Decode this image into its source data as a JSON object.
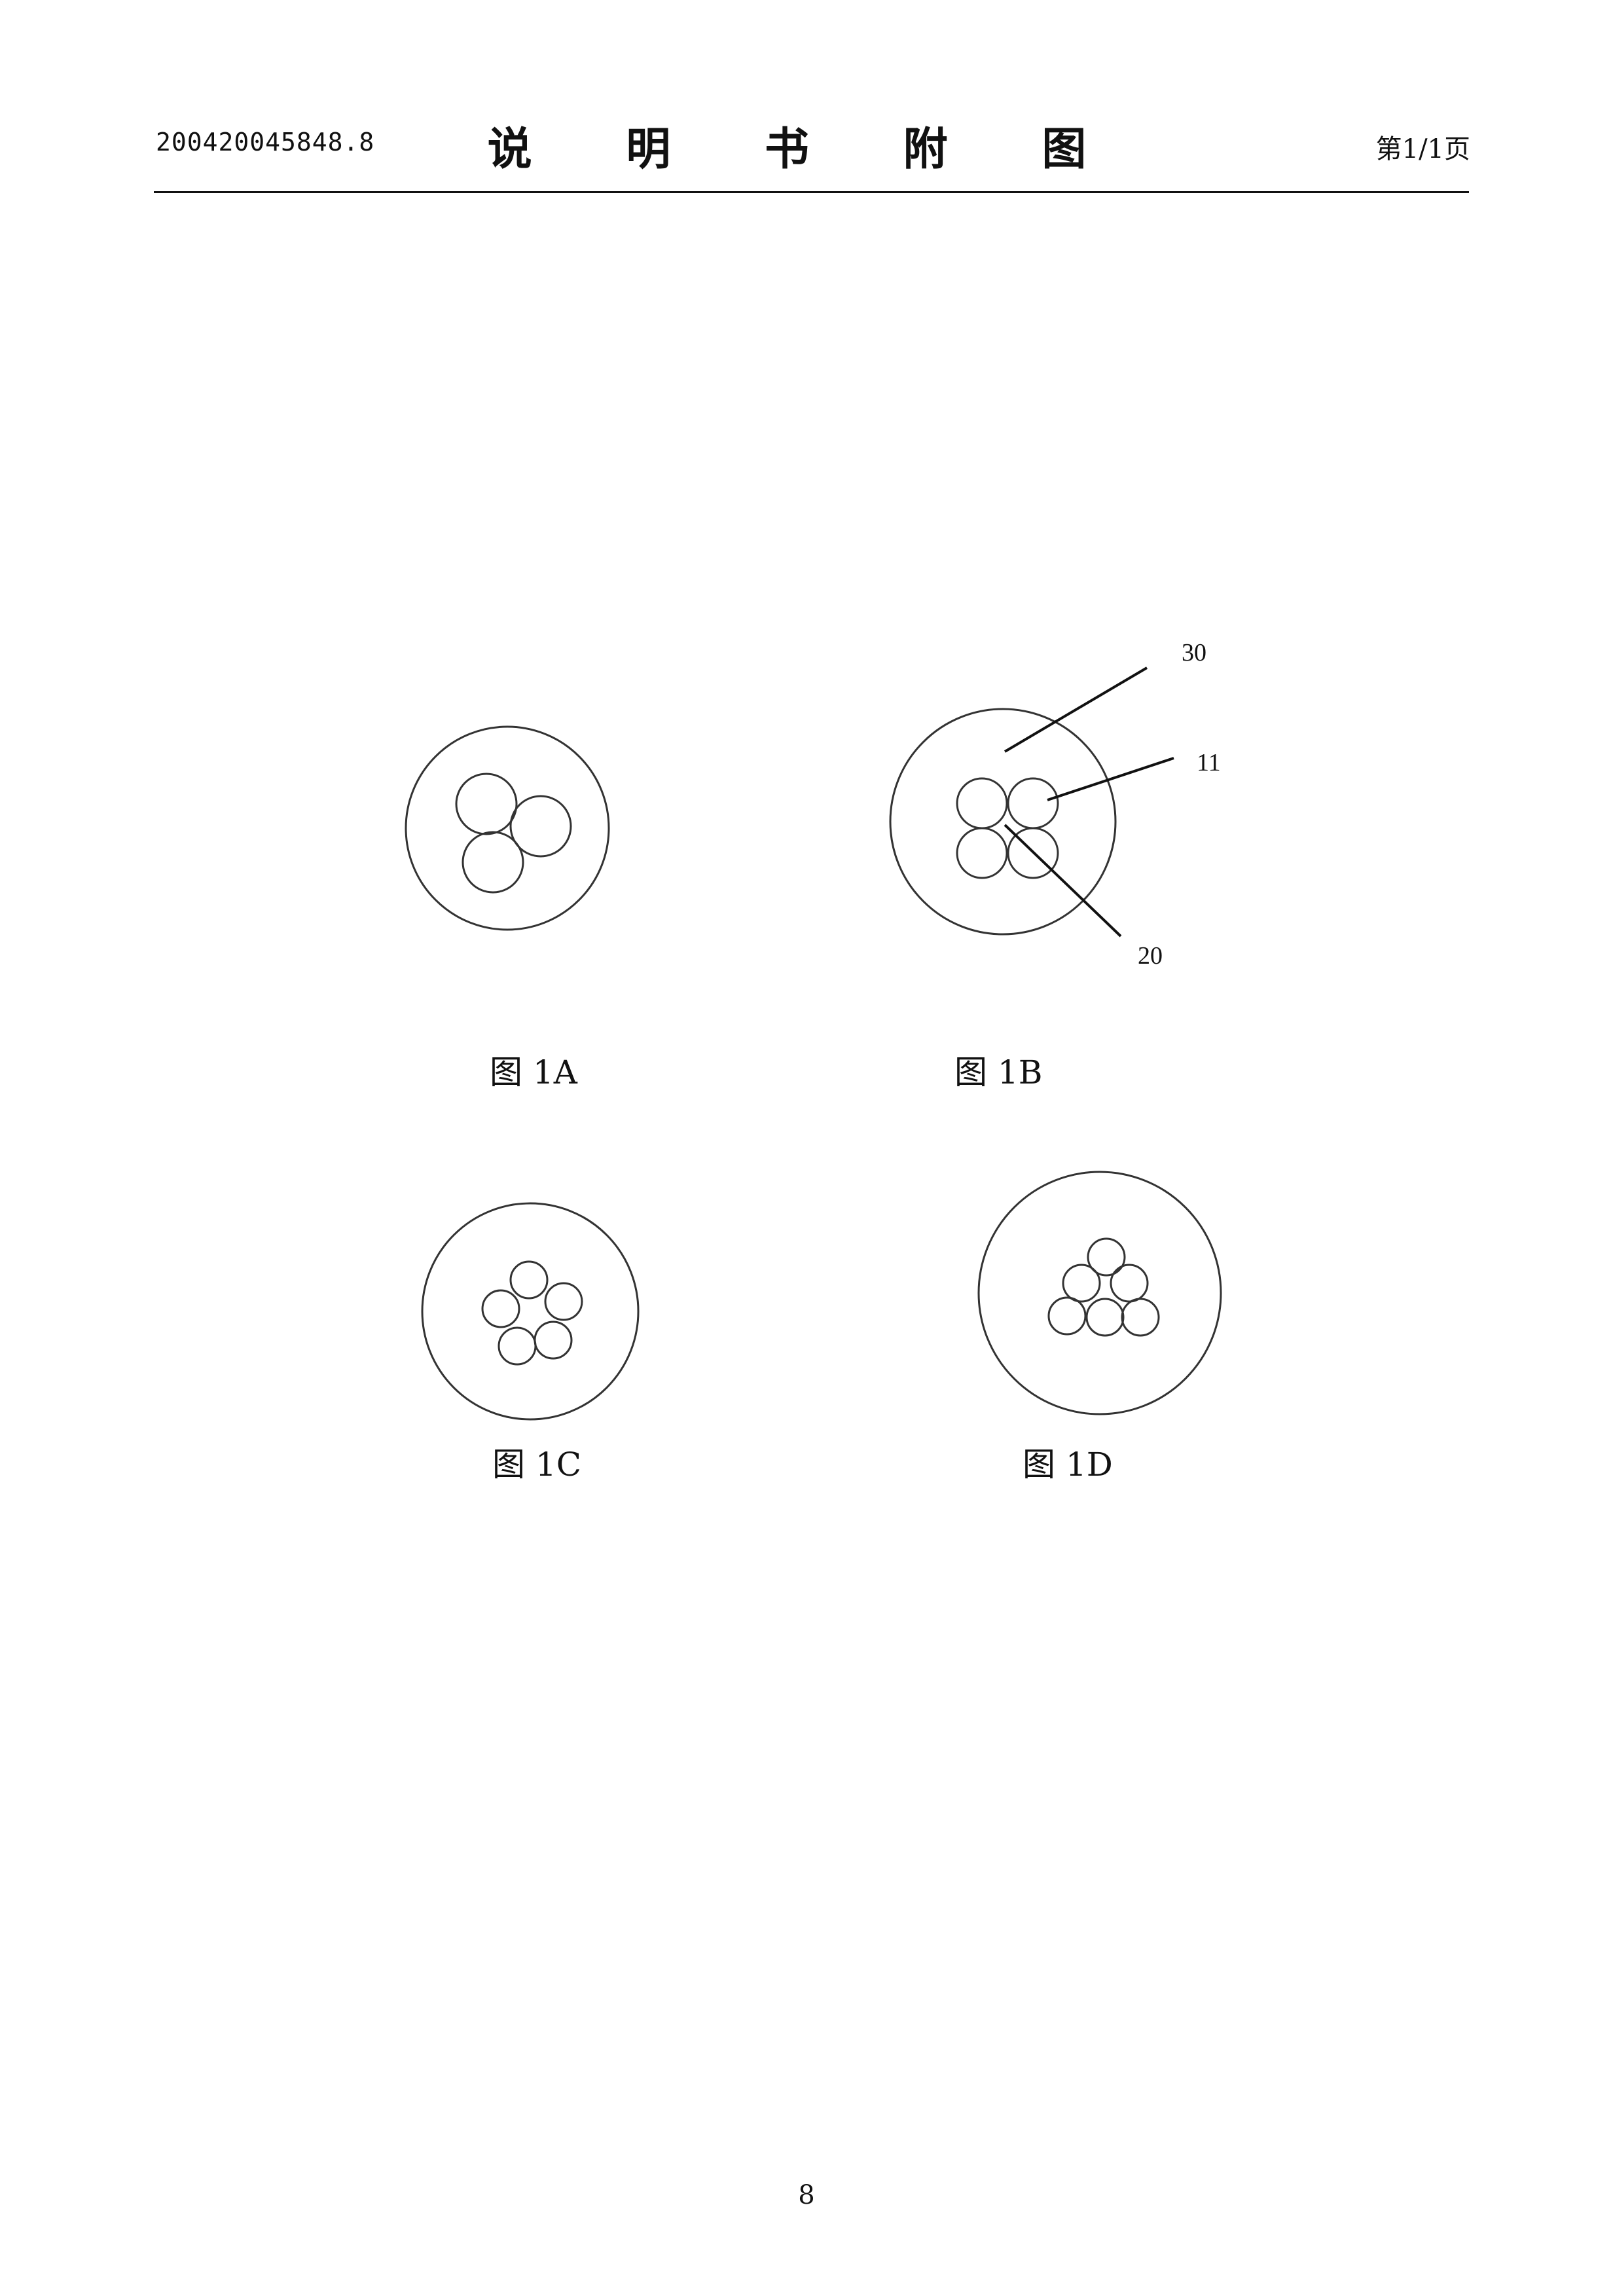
{
  "header": {
    "application_number": "200420045848.8",
    "title": "说 明 书 附 图",
    "page_indicator": "第1/1页"
  },
  "figures": [
    {
      "id": "1A",
      "caption": "图 1A"
    },
    {
      "id": "1B",
      "caption": "图 1B",
      "reference_labels": [
        "30",
        "11",
        "20"
      ]
    },
    {
      "id": "1C",
      "caption": "图 1C"
    },
    {
      "id": "1D",
      "caption": "图 1D"
    }
  ],
  "footer": {
    "page_number": "8"
  }
}
